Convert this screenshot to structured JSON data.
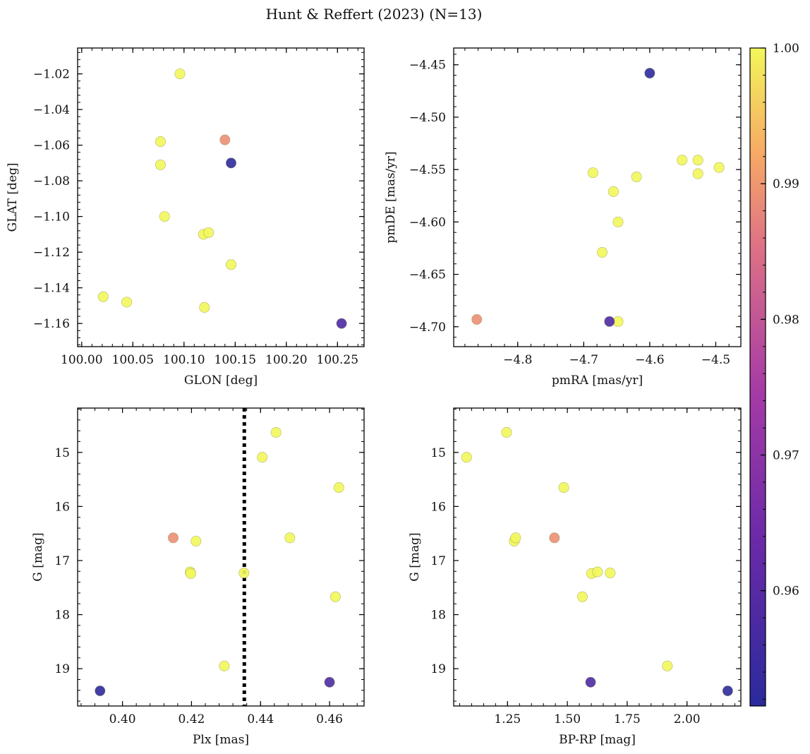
{
  "figure": {
    "title": "Hunt & Reffert (2023) (N=13)"
  },
  "colorbar": {
    "range": [
      0.9515,
      1.0
    ],
    "ticks": [
      0.96,
      0.97,
      0.98,
      0.99,
      1.0
    ],
    "tick_labels": [
      "0.96",
      "0.97",
      "0.98",
      "0.99",
      "1.00"
    ],
    "colormap": "plasma (alpha 0.8)"
  },
  "chart_data": [
    {
      "type": "scatter",
      "id": "glon_glat",
      "xlabel": "GLON [deg]",
      "ylabel": "GLAT [deg]",
      "xlim": [
        99.996,
        100.276
      ],
      "ylim": [
        -1.173,
        -1.0055
      ],
      "y_inverted": false,
      "xticks": [
        100.0,
        100.05,
        100.1,
        100.15,
        100.2,
        100.25
      ],
      "xtick_labels": [
        "100.00",
        "100.05",
        "100.10",
        "100.15",
        "100.20",
        "100.25"
      ],
      "yticks": [
        -1.02,
        -1.04,
        -1.06,
        -1.08,
        -1.1,
        -1.12,
        -1.14,
        -1.16
      ],
      "ytick_labels": [
        "−1.02",
        "−1.04",
        "−1.06",
        "−1.08",
        "−1.10",
        "−1.12",
        "−1.14",
        "−1.16"
      ],
      "points": [
        {
          "x": 100.096,
          "y": -1.02,
          "c": 1.0
        },
        {
          "x": 100.077,
          "y": -1.058,
          "c": 1.0
        },
        {
          "x": 100.077,
          "y": -1.071,
          "c": 1.0
        },
        {
          "x": 100.14,
          "y": -1.057,
          "c": 0.989
        },
        {
          "x": 100.146,
          "y": -1.07,
          "c": 0.952
        },
        {
          "x": 100.081,
          "y": -1.1,
          "c": 1.0
        },
        {
          "x": 100.119,
          "y": -1.11,
          "c": 1.0
        },
        {
          "x": 100.124,
          "y": -1.109,
          "c": 1.0
        },
        {
          "x": 100.146,
          "y": -1.127,
          "c": 1.0
        },
        {
          "x": 100.021,
          "y": -1.145,
          "c": 1.0
        },
        {
          "x": 100.044,
          "y": -1.148,
          "c": 1.0
        },
        {
          "x": 100.12,
          "y": -1.151,
          "c": 1.0
        },
        {
          "x": 100.254,
          "y": -1.16,
          "c": 0.958
        }
      ]
    },
    {
      "type": "scatter",
      "id": "pm",
      "xlabel": "pmRA [mas/yr]",
      "ylabel": "pmDE [mas/yr]",
      "xlim": [
        -4.897,
        -4.462
      ],
      "ylim": [
        -4.719,
        -4.434
      ],
      "y_inverted": false,
      "xticks": [
        -4.8,
        -4.7,
        -4.6,
        -4.5
      ],
      "xtick_labels": [
        "−4.8",
        "−4.7",
        "−4.6",
        "−4.5"
      ],
      "yticks": [
        -4.45,
        -4.5,
        -4.55,
        -4.6,
        -4.65,
        -4.7
      ],
      "ytick_labels": [
        "−4.45",
        "−4.50",
        "−4.55",
        "−4.60",
        "−4.65",
        "−4.70"
      ],
      "points": [
        {
          "x": -4.6,
          "y": -4.458,
          "c": 0.952
        },
        {
          "x": -4.551,
          "y": -4.541,
          "c": 1.0
        },
        {
          "x": -4.527,
          "y": -4.541,
          "c": 1.0
        },
        {
          "x": -4.527,
          "y": -4.554,
          "c": 1.0
        },
        {
          "x": -4.495,
          "y": -4.548,
          "c": 1.0
        },
        {
          "x": -4.686,
          "y": -4.553,
          "c": 1.0
        },
        {
          "x": -4.62,
          "y": -4.557,
          "c": 1.0
        },
        {
          "x": -4.655,
          "y": -4.571,
          "c": 1.0
        },
        {
          "x": -4.648,
          "y": -4.6,
          "c": 1.0
        },
        {
          "x": -4.672,
          "y": -4.629,
          "c": 1.0
        },
        {
          "x": -4.862,
          "y": -4.693,
          "c": 0.989
        },
        {
          "x": -4.661,
          "y": -4.695,
          "c": 0.958
        },
        {
          "x": -4.648,
          "y": -4.695,
          "c": 1.0
        }
      ]
    },
    {
      "type": "scatter",
      "id": "plx_g",
      "xlabel": "Plx [mas]",
      "ylabel": "G [mag]",
      "xlim": [
        0.387,
        0.47
      ],
      "ylim": [
        14.18,
        19.69
      ],
      "y_inverted": true,
      "xticks": [
        0.4,
        0.42,
        0.44,
        0.46
      ],
      "xtick_labels": [
        "0.40",
        "0.42",
        "0.44",
        "0.46"
      ],
      "yticks": [
        15,
        16,
        17,
        18,
        19
      ],
      "ytick_labels": [
        "15",
        "16",
        "17",
        "18",
        "19"
      ],
      "vline": {
        "x": 0.4353,
        "style": "dotted",
        "color": "#000000"
      },
      "points": [
        {
          "x": 0.4445,
          "y": 14.63,
          "c": 1.0
        },
        {
          "x": 0.4405,
          "y": 15.09,
          "c": 1.0
        },
        {
          "x": 0.4627,
          "y": 15.65,
          "c": 1.0
        },
        {
          "x": 0.4147,
          "y": 16.58,
          "c": 0.989
        },
        {
          "x": 0.4213,
          "y": 16.64,
          "c": 1.0
        },
        {
          "x": 0.4485,
          "y": 16.58,
          "c": 1.0
        },
        {
          "x": 0.4196,
          "y": 17.21,
          "c": 1.0
        },
        {
          "x": 0.4198,
          "y": 17.24,
          "c": 1.0
        },
        {
          "x": 0.4352,
          "y": 17.23,
          "c": 1.0
        },
        {
          "x": 0.4617,
          "y": 17.67,
          "c": 1.0
        },
        {
          "x": 0.4295,
          "y": 18.95,
          "c": 1.0
        },
        {
          "x": 0.46,
          "y": 19.25,
          "c": 0.958
        },
        {
          "x": 0.3935,
          "y": 19.41,
          "c": 0.952
        }
      ]
    },
    {
      "type": "scatter",
      "id": "cmd",
      "xlabel": "BP-RP [mag]",
      "ylabel": "G [mag]",
      "xlim": [
        1.025,
        2.225
      ],
      "ylim": [
        14.18,
        19.69
      ],
      "y_inverted": true,
      "xticks": [
        1.25,
        1.5,
        1.75,
        2.0
      ],
      "xtick_labels": [
        "1.25",
        "1.50",
        "1.75",
        "2.00"
      ],
      "yticks": [
        15,
        16,
        17,
        18,
        19
      ],
      "ytick_labels": [
        "15",
        "16",
        "17",
        "18",
        "19"
      ],
      "points": [
        {
          "x": 1.079,
          "y": 15.09,
          "c": 1.0
        },
        {
          "x": 1.246,
          "y": 14.63,
          "c": 1.0
        },
        {
          "x": 1.485,
          "y": 15.65,
          "c": 1.0
        },
        {
          "x": 1.278,
          "y": 16.64,
          "c": 1.0
        },
        {
          "x": 1.284,
          "y": 16.58,
          "c": 1.0
        },
        {
          "x": 1.446,
          "y": 16.58,
          "c": 0.989
        },
        {
          "x": 1.601,
          "y": 17.24,
          "c": 1.0
        },
        {
          "x": 1.626,
          "y": 17.21,
          "c": 1.0
        },
        {
          "x": 1.679,
          "y": 17.23,
          "c": 1.0
        },
        {
          "x": 1.563,
          "y": 17.67,
          "c": 1.0
        },
        {
          "x": 1.918,
          "y": 18.95,
          "c": 1.0
        },
        {
          "x": 1.597,
          "y": 19.25,
          "c": 0.958
        },
        {
          "x": 2.17,
          "y": 19.41,
          "c": 0.952
        }
      ]
    }
  ]
}
